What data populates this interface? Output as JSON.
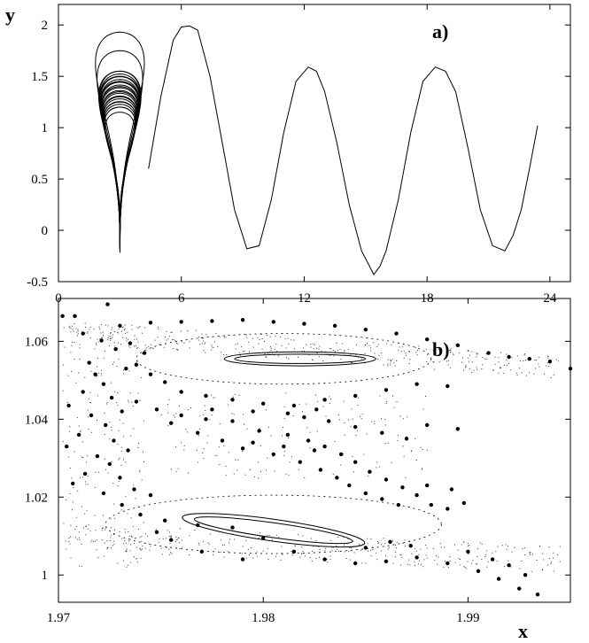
{
  "chart_data": [
    {
      "panel": "a)",
      "type": "line",
      "xlabel": "",
      "ylabel": "y",
      "xlim": [
        0,
        25
      ],
      "ylim": [
        -0.5,
        2.2
      ],
      "xticks": [
        "0",
        "6",
        "12",
        "18",
        "24"
      ],
      "yticks": [
        "-0.5",
        "0",
        "0.5",
        "1",
        "1.5",
        "2"
      ],
      "trapped_loop": {
        "center_x": 3.0,
        "loops": [
          {
            "half_width": 1.5,
            "top": 1.93,
            "bottom": -0.22
          },
          {
            "half_width": 1.4,
            "top": 1.75,
            "bottom": -0.2
          },
          {
            "half_width": 1.3,
            "top": 1.55,
            "bottom": -0.18
          },
          {
            "half_width": 1.25,
            "top": 1.5,
            "bottom": -0.15
          },
          {
            "half_width": 1.2,
            "top": 1.45,
            "bottom": -0.12
          },
          {
            "half_width": 1.15,
            "top": 1.4,
            "bottom": -0.1
          },
          {
            "half_width": 1.1,
            "top": 1.35,
            "bottom": -0.07
          },
          {
            "half_width": 1.05,
            "top": 1.3,
            "bottom": -0.05
          },
          {
            "half_width": 1.0,
            "top": 1.25,
            "bottom": -0.02
          },
          {
            "half_width": 0.95,
            "top": 1.2,
            "bottom": 0.0
          },
          {
            "half_width": 0.9,
            "top": 1.15,
            "bottom": 0.03
          }
        ]
      },
      "escape_curve": {
        "x": [
          4.4,
          5.0,
          5.6,
          6.0,
          6.4,
          6.8,
          7.4,
          8.0,
          8.6,
          9.2,
          9.8,
          10.4,
          11.0,
          11.6,
          12.2,
          12.6,
          13.0,
          13.6,
          14.2,
          14.8,
          15.4,
          15.7,
          16.0,
          16.6,
          17.2,
          17.8,
          18.4,
          18.9,
          19.4,
          20.0,
          20.6,
          21.2,
          21.8,
          22.2,
          22.6,
          23.0,
          23.4
        ],
        "y": [
          0.6,
          1.3,
          1.85,
          1.98,
          1.99,
          1.95,
          1.5,
          0.85,
          0.2,
          -0.18,
          -0.15,
          0.3,
          0.95,
          1.45,
          1.59,
          1.55,
          1.35,
          0.85,
          0.25,
          -0.2,
          -0.43,
          -0.35,
          -0.2,
          0.3,
          0.95,
          1.45,
          1.59,
          1.55,
          1.35,
          0.8,
          0.2,
          -0.15,
          -0.2,
          -0.05,
          0.2,
          0.6,
          1.02
        ]
      }
    },
    {
      "panel": "b)",
      "type": "scatter",
      "xlabel": "x",
      "ylabel": "",
      "xlim": [
        1.97,
        1.995
      ],
      "ylim": [
        0.993,
        1.071
      ],
      "xticks": [
        "1.97",
        "1.98",
        "1.99"
      ],
      "yticks": [
        "1",
        "1.02",
        "1.04",
        "1.06"
      ],
      "islands": [
        {
          "cx": 1.9818,
          "cy": 1.0555,
          "rx": 0.0037,
          "ry": 0.0018,
          "angle": 0
        },
        {
          "cx": 1.9818,
          "cy": 1.0555,
          "rx": 0.0032,
          "ry": 0.0012,
          "angle": 0
        },
        {
          "cx": 1.9805,
          "cy": 1.0115,
          "rx": 0.0045,
          "ry": 0.0028,
          "angle": 8
        },
        {
          "cx": 1.9805,
          "cy": 1.0115,
          "rx": 0.0039,
          "ry": 0.0019,
          "angle": 8
        }
      ],
      "dashed_tori": [
        {
          "cx": 1.981,
          "cy": 1.0555,
          "rx": 0.0072,
          "ry": 0.0065
        },
        {
          "cx": 1.9805,
          "cy": 1.013,
          "rx": 0.0082,
          "ry": 0.0075
        }
      ],
      "large_points": [
        [
          1.9702,
          1.0665
        ],
        [
          1.9708,
          1.0665
        ],
        [
          1.9724,
          1.0695
        ],
        [
          1.9721,
          1.0602
        ],
        [
          1.9715,
          1.0545
        ],
        [
          1.9718,
          1.0515
        ],
        [
          1.9722,
          1.049
        ],
        [
          1.9712,
          1.047
        ],
        [
          1.9705,
          1.0435
        ],
        [
          1.9716,
          1.041
        ],
        [
          1.9723,
          1.0385
        ],
        [
          1.971,
          1.036
        ],
        [
          1.9704,
          1.033
        ],
        [
          1.9719,
          1.0305
        ],
        [
          1.9725,
          1.0285
        ],
        [
          1.9713,
          1.026
        ],
        [
          1.9707,
          1.0235
        ],
        [
          1.9722,
          1.021
        ],
        [
          1.9731,
          1.018
        ],
        [
          1.974,
          1.0155
        ],
        [
          1.9752,
          1.014
        ],
        [
          1.9768,
          1.0128
        ],
        [
          1.9785,
          1.0122
        ],
        [
          1.98,
          1.0095
        ],
        [
          1.9815,
          1.006
        ],
        [
          1.983,
          1.004
        ],
        [
          1.9845,
          1.003
        ],
        [
          1.986,
          1.0035
        ],
        [
          1.9875,
          1.0045
        ],
        [
          1.989,
          1.003
        ],
        [
          1.9905,
          1.001
        ],
        [
          1.9915,
          0.999
        ],
        [
          1.9925,
          0.9965
        ],
        [
          1.9934,
          0.995
        ],
        [
          1.973,
          1.064
        ],
        [
          1.9745,
          1.0648
        ],
        [
          1.976,
          1.065
        ],
        [
          1.9775,
          1.0652
        ],
        [
          1.979,
          1.0655
        ],
        [
          1.9805,
          1.065
        ],
        [
          1.982,
          1.0645
        ],
        [
          1.9835,
          1.064
        ],
        [
          1.985,
          1.063
        ],
        [
          1.9865,
          1.062
        ],
        [
          1.988,
          1.0605
        ],
        [
          1.9895,
          1.059
        ],
        [
          1.991,
          1.057
        ],
        [
          1.992,
          1.056
        ],
        [
          1.993,
          1.0555
        ],
        [
          1.994,
          1.0548
        ],
        [
          1.995,
          1.053
        ],
        [
          1.9735,
          1.0595
        ],
        [
          1.9742,
          1.057
        ],
        [
          1.9738,
          1.054
        ],
        [
          1.9745,
          1.0515
        ],
        [
          1.9752,
          1.0495
        ],
        [
          1.976,
          1.047
        ],
        [
          1.9772,
          1.046
        ],
        [
          1.9785,
          1.045
        ],
        [
          1.98,
          1.044
        ],
        [
          1.9815,
          1.0435
        ],
        [
          1.983,
          1.045
        ],
        [
          1.9845,
          1.046
        ],
        [
          1.986,
          1.0475
        ],
        [
          1.9875,
          1.049
        ],
        [
          1.989,
          1.0485
        ],
        [
          1.988,
          1.0385
        ],
        [
          1.9895,
          1.0375
        ],
        [
          1.976,
          1.041
        ],
        [
          1.9772,
          1.04
        ],
        [
          1.9785,
          1.0395
        ],
        [
          1.9798,
          1.037
        ],
        [
          1.9812,
          1.036
        ],
        [
          1.9822,
          1.0345
        ],
        [
          1.983,
          1.033
        ],
        [
          1.9838,
          1.031
        ],
        [
          1.9845,
          1.029
        ],
        [
          1.9852,
          1.0265
        ],
        [
          1.986,
          1.0245
        ],
        [
          1.9868,
          1.0225
        ],
        [
          1.9875,
          1.0205
        ],
        [
          1.9882,
          1.018
        ],
        [
          1.989,
          1.017
        ],
        [
          1.9898,
          1.0185
        ],
        [
          1.9738,
          1.0445
        ],
        [
          1.9748,
          1.0425
        ],
        [
          1.9755,
          1.039
        ],
        [
          1.9768,
          1.0365
        ],
        [
          1.978,
          1.0345
        ],
        [
          1.979,
          1.0325
        ],
        [
          1.9805,
          1.031
        ],
        [
          1.9818,
          1.029
        ],
        [
          1.9828,
          1.027
        ],
        [
          1.9836,
          1.025
        ],
        [
          1.9842,
          1.023
        ],
        [
          1.985,
          1.021
        ],
        [
          1.9858,
          1.0195
        ],
        [
          1.9866,
          1.018
        ],
        [
          1.9712,
          1.062
        ],
        [
          1.9728,
          1.058
        ],
        [
          1.9733,
          1.053
        ],
        [
          1.9726,
          1.0455
        ],
        [
          1.9731,
          1.042
        ],
        [
          1.9727,
          1.0345
        ],
        [
          1.9734,
          1.032
        ],
        [
          1.973,
          1.025
        ],
        [
          1.9737,
          1.022
        ],
        [
          1.9745,
          1.0205
        ],
        [
          1.982,
          1.0405
        ],
        [
          1.9832,
          1.0395
        ],
        [
          1.9845,
          1.038
        ],
        [
          1.9858,
          1.0365
        ],
        [
          1.987,
          1.035
        ],
        [
          1.9826,
          1.0425
        ],
        [
          1.9812,
          1.0415
        ],
        [
          1.9795,
          1.042
        ],
        [
          1.9775,
          1.0425
        ],
        [
          1.9825,
          1.032
        ],
        [
          1.981,
          1.033
        ],
        [
          1.9795,
          1.034
        ],
        [
          1.9892,
          1.022
        ],
        [
          1.988,
          1.023
        ],
        [
          1.985,
          1.007
        ],
        [
          1.9862,
          1.0085
        ],
        [
          1.9872,
          1.0075
        ],
        [
          1.99,
          1.006
        ],
        [
          1.9912,
          1.004
        ],
        [
          1.992,
          1.0025
        ],
        [
          1.9928,
          1.0
        ],
        [
          1.979,
          1.004
        ],
        [
          1.977,
          1.006
        ],
        [
          1.9755,
          1.009
        ],
        [
          1.9748,
          1.011
        ]
      ]
    }
  ]
}
